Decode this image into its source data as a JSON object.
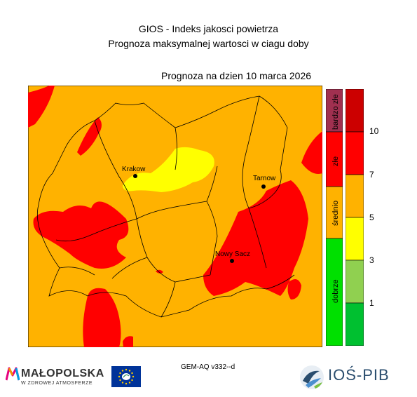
{
  "header": {
    "line1": "GIOS - Indeks jakosci powietrza",
    "line2": "Prognoza maksymalnej wartosci w ciagu doby",
    "forecast_date": "Prognoza na dzien  10 marca 2026"
  },
  "map": {
    "colors": {
      "dark_red": "#cc0000",
      "red": "#ff0000",
      "orange": "#ffb200",
      "yellow": "#ffff00",
      "light_yellow": "#f0f050",
      "light_green": "#90d050",
      "green": "#00c030",
      "bright_green": "#00e000",
      "purple": "#a03050"
    },
    "cities": [
      {
        "name": "Krakow"
      },
      {
        "name": "Tarnow"
      },
      {
        "name": "Nowy Sacz"
      }
    ]
  },
  "legend": {
    "categories": [
      "bardzo złe",
      "złe",
      "średnio",
      "dobrze"
    ],
    "ticks": [
      "10",
      "7",
      "5",
      "3",
      "1"
    ]
  },
  "footer": {
    "model": "GEM-AQ v332--d",
    "malopolska": "MAŁOPOLSKA",
    "malopolska_sub": "W ZDROWEJ ATMOSFERZE",
    "ios": "IOŚ-PIB"
  }
}
